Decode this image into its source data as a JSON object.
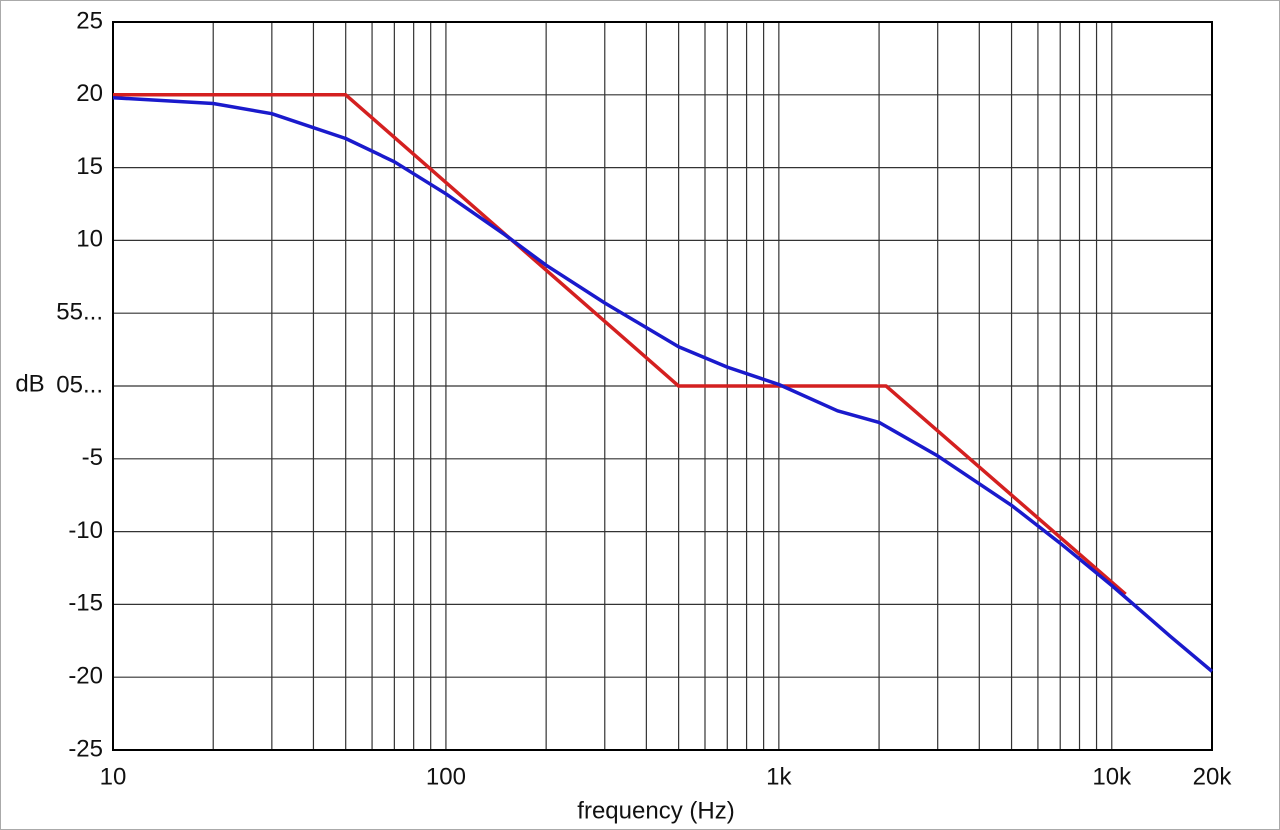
{
  "chart_data": {
    "type": "line",
    "xlabel": "frequency (Hz)",
    "ylabel": "dB",
    "xscale": "log",
    "xlim": [
      10,
      20000
    ],
    "ylim": [
      -25,
      25
    ],
    "xticks": [
      10,
      100,
      {
        "value": 1000,
        "label": "1k"
      },
      {
        "value": 10000,
        "label": "10k"
      },
      {
        "value": 20000,
        "label": "20k"
      }
    ],
    "xminor_ticks": [
      20,
      30,
      40,
      50,
      60,
      70,
      80,
      90,
      200,
      300,
      400,
      500,
      600,
      700,
      800,
      900,
      2000,
      3000,
      4000,
      5000,
      6000,
      7000,
      8000,
      9000
    ],
    "yticks": [
      25,
      20,
      15,
      10,
      {
        "value": 5,
        "label": "55..."
      },
      {
        "value": 0,
        "label": "05..."
      },
      -5,
      -10,
      -15,
      -20,
      -25
    ],
    "grid": true,
    "series": [
      {
        "color": "#d42020",
        "x": [
          10,
          50,
          500,
          2100,
          11000
        ],
        "values": [
          20,
          20,
          0,
          0,
          -14.3
        ]
      },
      {
        "color": "#1a1acc",
        "x": [
          10,
          20,
          30,
          50,
          70,
          100,
          150,
          200,
          300,
          500,
          700,
          1000,
          1500,
          2000,
          3000,
          5000,
          7000,
          10000,
          15000,
          20000
        ],
        "values": [
          19.8,
          19.4,
          18.7,
          17.0,
          15.4,
          13.2,
          10.4,
          8.3,
          5.7,
          2.7,
          1.3,
          0.1,
          -1.7,
          -2.5,
          -4.8,
          -8.2,
          -10.8,
          -13.7,
          -17.2,
          -19.6
        ]
      }
    ]
  }
}
